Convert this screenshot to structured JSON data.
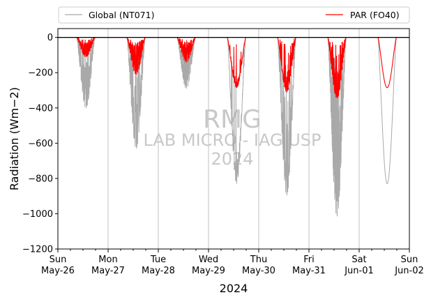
{
  "chart_data": {
    "type": "line",
    "xlabel": "2024",
    "ylabel": "Radiation (Wm−2)",
    "ylim": [
      -1200,
      50
    ],
    "yticks": [
      0,
      -200,
      -400,
      -600,
      -800,
      -1000,
      -1200
    ],
    "ytick_labels": [
      "0",
      "−200",
      "−400",
      "−600",
      "−800",
      "−1000",
      "−1200"
    ],
    "xlim": [
      "2024-05-26",
      "2024-06-02"
    ],
    "xticks": [
      {
        "day": "Sun",
        "date": "May-26"
      },
      {
        "day": "Mon",
        "date": "May-27"
      },
      {
        "day": "Tue",
        "date": "May-28"
      },
      {
        "day": "Wed",
        "date": "May-29"
      },
      {
        "day": "Thu",
        "date": "May-30"
      },
      {
        "day": "Fri",
        "date": "May-31"
      },
      {
        "day": "Sat",
        "date": "Jun-01"
      },
      {
        "day": "Sun",
        "date": "Jun-02"
      }
    ],
    "grid": "vertical",
    "legend_placement": "top",
    "watermark": {
      "line1": "RMG",
      "line2": "LAB MICRO - IAG USP",
      "line3": "2024"
    },
    "series": [
      {
        "name": "Global (NT071)",
        "color": "#a9a9a9",
        "daily_min": [
          -400,
          -630,
          -290,
          -830,
          -895,
          -1015,
          -830
        ]
      },
      {
        "name": "PAR (FO40)",
        "color": "#ff0000",
        "daily_min": [
          -110,
          -210,
          -140,
          -285,
          -310,
          -345,
          -285
        ]
      }
    ]
  }
}
